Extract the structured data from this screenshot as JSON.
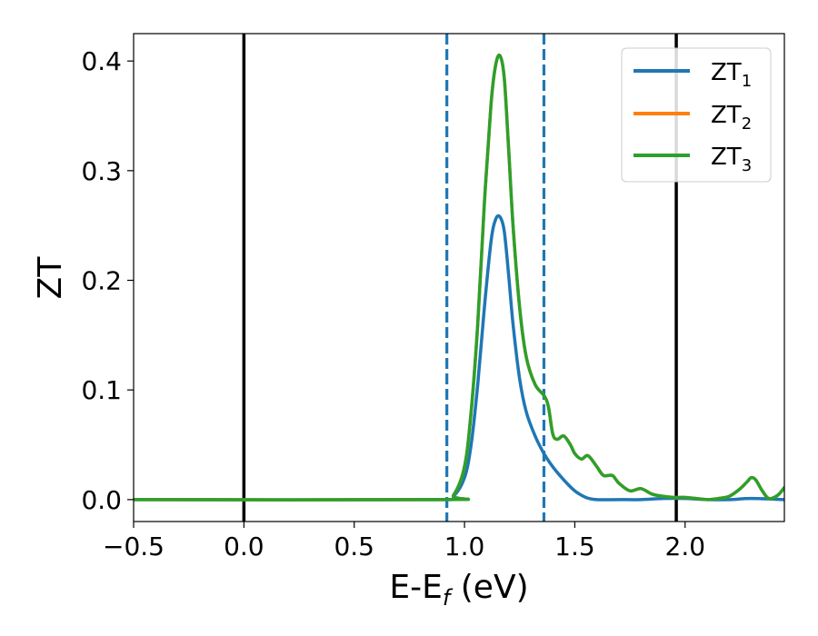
{
  "chart_data": {
    "type": "line",
    "xlabel": "E-E",
    "xlabel_sub": "f",
    "xlabel_suffix": " (eV)",
    "ylabel": "ZT",
    "xlim": [
      -0.5,
      2.45
    ],
    "ylim": [
      -0.02,
      0.425
    ],
    "xticks": [
      -0.5,
      0.0,
      0.5,
      1.0,
      1.5,
      2.0
    ],
    "xtick_labels": [
      "−0.5",
      "0.0",
      "0.5",
      "1.0",
      "1.5",
      "2.0"
    ],
    "yticks": [
      0.0,
      0.1,
      0.2,
      0.3,
      0.4
    ],
    "ytick_labels": [
      "0.0",
      "0.1",
      "0.2",
      "0.3",
      "0.4"
    ],
    "grid": false,
    "legend_position": "top-right",
    "vlines": [
      {
        "x": 0.0,
        "style": "solid",
        "color": "#000000"
      },
      {
        "x": 1.96,
        "style": "solid",
        "color": "#000000"
      },
      {
        "x": 0.92,
        "style": "dashed",
        "color": "#1f77b4"
      },
      {
        "x": 1.36,
        "style": "dashed",
        "color": "#1f77b4"
      }
    ],
    "series": [
      {
        "name": "ZT",
        "name_sub": "1",
        "color": "#1f77b4",
        "x": [
          -0.5,
          0.9,
          0.95,
          1.0,
          1.03,
          1.06,
          1.09,
          1.12,
          1.14,
          1.16,
          1.18,
          1.2,
          1.22,
          1.25,
          1.28,
          1.32,
          1.36,
          1.4,
          1.45,
          1.5,
          1.55,
          1.6,
          1.7,
          1.8,
          1.9,
          2.0,
          2.1,
          2.2,
          2.3,
          2.45
        ],
        "y": [
          0.0,
          0.0,
          0.003,
          0.02,
          0.05,
          0.105,
          0.175,
          0.235,
          0.255,
          0.258,
          0.245,
          0.205,
          0.16,
          0.11,
          0.08,
          0.058,
          0.042,
          0.03,
          0.018,
          0.008,
          0.002,
          0.0,
          0.0,
          0.0,
          0.001,
          0.001,
          0.0,
          0.0,
          0.001,
          0.0
        ]
      },
      {
        "name": "ZT",
        "name_sub": "2",
        "color": "#ff7f0e",
        "x": [
          -0.5,
          0.9,
          0.95,
          1.0,
          1.03,
          1.06,
          1.09,
          1.12,
          1.14,
          1.16,
          1.18,
          1.2,
          1.22,
          1.25,
          1.28,
          1.32,
          1.36,
          1.38,
          1.4,
          1.42,
          1.45,
          1.48,
          1.5,
          1.53,
          1.56,
          1.6,
          1.63,
          1.67,
          1.7,
          1.75,
          1.8,
          1.85,
          1.9,
          1.95,
          2.0,
          2.05,
          2.1,
          2.15,
          2.2,
          2.25,
          2.28,
          2.3,
          2.32,
          2.35,
          2.38,
          2.42,
          2.45
        ],
        "y": [
          0.0,
          0.0,
          0.004,
          0.03,
          0.08,
          0.16,
          0.27,
          0.36,
          0.395,
          0.405,
          0.385,
          0.32,
          0.25,
          0.175,
          0.13,
          0.105,
          0.095,
          0.085,
          0.06,
          0.055,
          0.058,
          0.05,
          0.042,
          0.037,
          0.04,
          0.03,
          0.022,
          0.022,
          0.015,
          0.008,
          0.01,
          0.005,
          0.003,
          0.002,
          0.002,
          0.001,
          0.0,
          0.001,
          0.003,
          0.01,
          0.016,
          0.02,
          0.018,
          0.008,
          0.001,
          0.004,
          0.011
        ]
      },
      {
        "name": "ZT",
        "name_sub": "3",
        "color": "#2ca02c",
        "x": [
          -0.5,
          0.9,
          0.95,
          1.0,
          1.03,
          1.06,
          1.09,
          1.12,
          1.14,
          1.16,
          1.18,
          1.2,
          1.22,
          1.25,
          1.28,
          1.32,
          1.36,
          1.38,
          1.4,
          1.42,
          1.45,
          1.48,
          1.5,
          1.53,
          1.56,
          1.6,
          1.63,
          1.67,
          1.7,
          1.75,
          1.8,
          1.85,
          1.9,
          1.95,
          2.0,
          2.05,
          2.1,
          2.15,
          2.2,
          2.25,
          2.28,
          2.3,
          2.32,
          2.35,
          2.38,
          2.42,
          2.45
        ],
        "y": [
          0.0,
          0.0,
          0.004,
          0.03,
          0.08,
          0.16,
          0.27,
          0.36,
          0.395,
          0.405,
          0.385,
          0.32,
          0.25,
          0.175,
          0.13,
          0.105,
          0.095,
          0.085,
          0.06,
          0.055,
          0.058,
          0.05,
          0.042,
          0.037,
          0.04,
          0.03,
          0.022,
          0.022,
          0.015,
          0.008,
          0.01,
          0.005,
          0.003,
          0.002,
          0.002,
          0.001,
          0.0,
          0.001,
          0.003,
          0.01,
          0.016,
          0.02,
          0.018,
          0.008,
          0.001,
          0.004,
          0.011
        ]
      }
    ]
  }
}
